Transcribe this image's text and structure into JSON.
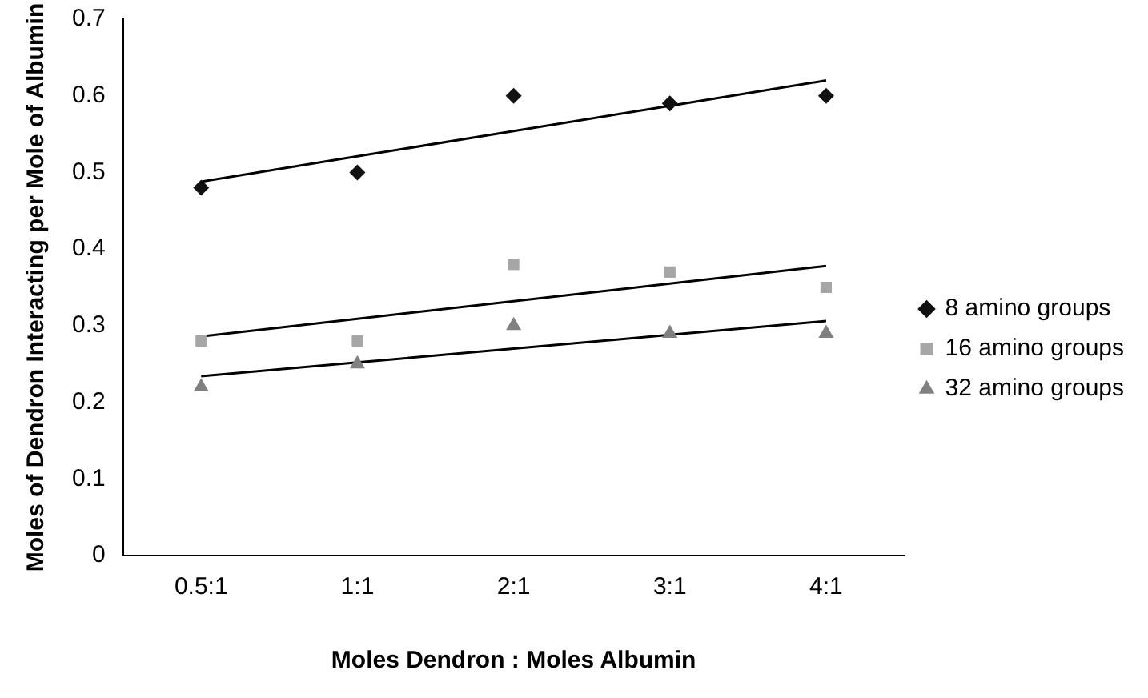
{
  "chart_data": {
    "type": "scatter",
    "xlabel": "Moles Dendron : Moles Albumin",
    "ylabel": "Moles of Dendron Interacting per Mole of Albumin",
    "categories": [
      "0.5:1",
      "1:1",
      "2:1",
      "3:1",
      "4:1"
    ],
    "series": [
      {
        "name": "8 amino groups",
        "color": "#111111",
        "marker": "diamond",
        "values": [
          0.48,
          0.5,
          0.6,
          0.59,
          0.6
        ]
      },
      {
        "name": "16 amino groups",
        "color": "#a6a6a6",
        "marker": "square",
        "values": [
          0.28,
          0.28,
          0.38,
          0.37,
          0.35
        ]
      },
      {
        "name": "32 amino groups",
        "color": "#808080",
        "marker": "triangle",
        "values": [
          0.22,
          0.25,
          0.3,
          0.29,
          0.29
        ]
      },
      {
        "type": "line",
        "color": "#000000",
        "marker": "none",
        "values": [
          0.488,
          0.521,
          0.554,
          0.587,
          0.62
        ]
      },
      {
        "type": "line",
        "color": "#000000",
        "marker": "none",
        "values": [
          0.286,
          0.309,
          0.332,
          0.355,
          0.378
        ]
      },
      {
        "type": "line",
        "color": "#000000",
        "marker": "none",
        "values": [
          0.234,
          0.252,
          0.27,
          0.288,
          0.306
        ]
      }
    ],
    "ylim": [
      0,
      0.7
    ],
    "yticks": [
      0,
      0.1,
      0.2,
      0.3,
      0.4,
      0.5,
      0.6,
      0.7
    ],
    "grid": false,
    "legend": "right"
  }
}
